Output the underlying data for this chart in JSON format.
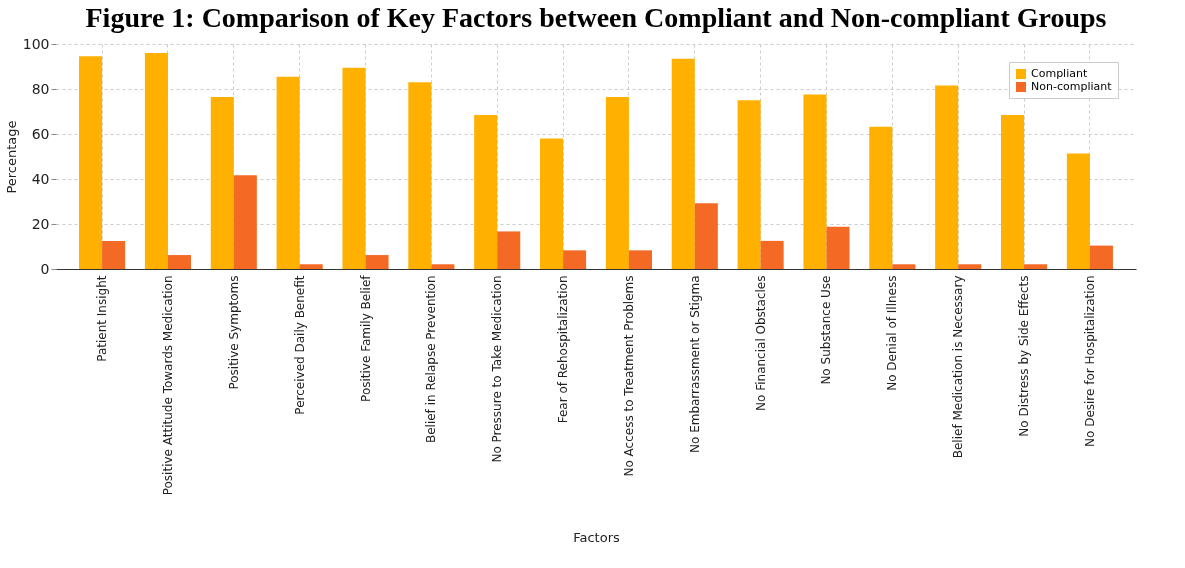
{
  "chart_data": {
    "type": "bar",
    "title": "Figure 1: Comparison of Key Factors between Compliant and Non-compliant Groups",
    "xlabel": "Factors",
    "ylabel": "Percentage",
    "categories": [
      "Patient Insight",
      "Positive Attitude Towards Medication",
      "Positive Symptoms",
      "Perceived Daily Benefit",
      "Positive Family Belief",
      "Belief in Relapse Prevention",
      "No Pressure to Take Medication",
      "Fear of Rehospitalization",
      "No Access to Treatment Problems",
      "No Embarrassment or Stigma",
      "No Financial Obstacles",
      "No Substance Use",
      "No Denial of Illness",
      "Belief Medication is Necessary",
      "No Distress by Side Effects",
      "No Desire for Hospitalization"
    ],
    "series": [
      {
        "name": "Compliant",
        "color": "#ffb000",
        "values": [
          94.6,
          96.0,
          76.4,
          85.5,
          89.5,
          83.0,
          68.4,
          58.0,
          76.4,
          93.4,
          75.0,
          77.6,
          63.2,
          81.6,
          68.4,
          51.3
        ]
      },
      {
        "name": "Non-compliant",
        "color": "#f46a25",
        "values": [
          12.5,
          6.2,
          41.7,
          2.1,
          6.2,
          2.1,
          16.7,
          8.3,
          8.3,
          29.2,
          12.5,
          18.8,
          2.1,
          2.1,
          2.1,
          10.4
        ]
      }
    ],
    "ylim": [
      0,
      100
    ],
    "yticks": [
      0,
      20,
      40,
      60,
      80,
      100
    ],
    "grid": true,
    "legend": "top right"
  }
}
